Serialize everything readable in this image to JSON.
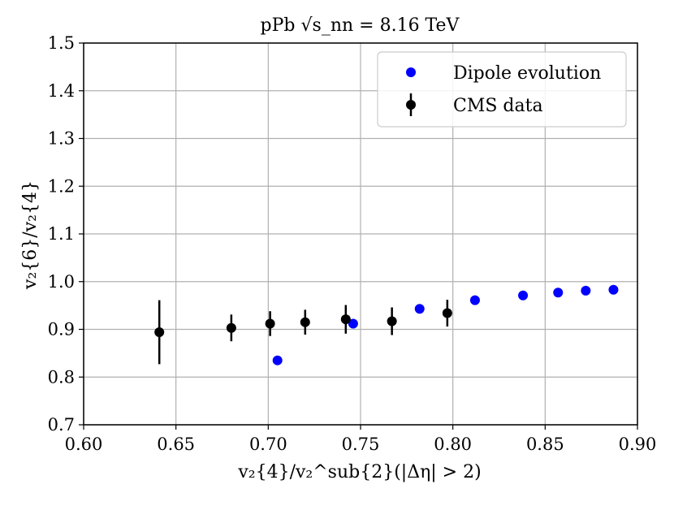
{
  "chart_data": {
    "type": "scatter",
    "title": "pPb √s_nn = 8.16 TeV",
    "xlabel": "v₂{4}/v₂^sub{2}(|Δη| > 2)",
    "ylabel": "v₂{6}/v₂{4}",
    "xlim": [
      0.6,
      0.9
    ],
    "ylim": [
      0.7,
      1.5
    ],
    "xticks": [
      0.6,
      0.65,
      0.7,
      0.75,
      0.8,
      0.85,
      0.9
    ],
    "xtick_labels": [
      "0.60",
      "0.65",
      "0.70",
      "0.75",
      "0.80",
      "0.85",
      "0.90"
    ],
    "yticks": [
      0.7,
      0.8,
      0.9,
      1.0,
      1.1,
      1.2,
      1.3,
      1.4,
      1.5
    ],
    "ytick_labels": [
      "0.7",
      "0.8",
      "0.9",
      "1.0",
      "1.1",
      "1.2",
      "1.3",
      "1.4",
      "1.5"
    ],
    "grid": true,
    "legend_position": "top-right",
    "series": [
      {
        "name": "Dipole evolution",
        "color": "#0000ff",
        "x": [
          0.705,
          0.746,
          0.782,
          0.812,
          0.838,
          0.857,
          0.872,
          0.887
        ],
        "y": [
          0.835,
          0.912,
          0.943,
          0.961,
          0.971,
          0.977,
          0.981,
          0.983
        ]
      },
      {
        "name": "CMS data",
        "color": "#000000",
        "errorbars": true,
        "x": [
          0.641,
          0.68,
          0.701,
          0.72,
          0.742,
          0.767,
          0.797
        ],
        "y": [
          0.894,
          0.903,
          0.912,
          0.915,
          0.921,
          0.917,
          0.934
        ],
        "yerr": [
          0.067,
          0.028,
          0.026,
          0.026,
          0.03,
          0.029,
          0.028
        ]
      }
    ]
  }
}
